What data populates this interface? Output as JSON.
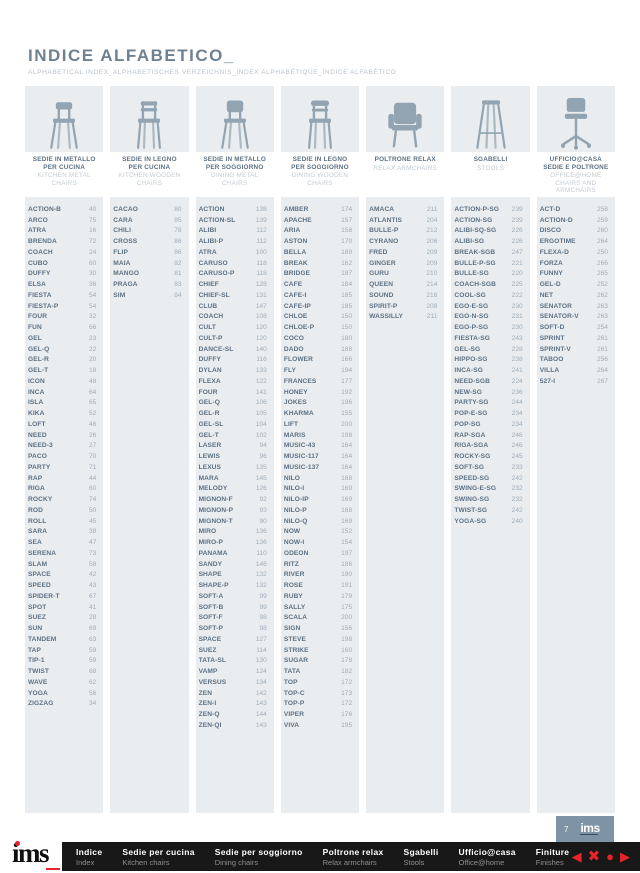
{
  "header": {
    "title": "INDICE ALFABETICO_",
    "subtitle": "ALPHABETICAL INDEX_ALPHABETISCHES VERZEICHNIS_INDEX ALPHABÉTIQUE_ÍNDICE ALFABÉTICO"
  },
  "brand": {
    "logo": "ims",
    "accent_red": "#e5242b",
    "panel_gray": "#e9edf0",
    "badge_blue": "#7e94a4"
  },
  "badge": {
    "page_number": "7",
    "logo": "ims"
  },
  "columns": [
    {
      "icon": "kitchen-metal-chair",
      "title_it": "SEDIE IN METALLO\nPER CUCINA",
      "title_en": "KITCHEN METAL\nCHAIRS",
      "items": [
        [
          "ACTION-B",
          40
        ],
        [
          "ARCO",
          75
        ],
        [
          "ATRA",
          16
        ],
        [
          "BRENDA",
          72
        ],
        [
          "COACH",
          24
        ],
        [
          "CUBO",
          60
        ],
        [
          "DUFFY",
          30
        ],
        [
          "ELSA",
          36
        ],
        [
          "FIESTA",
          54
        ],
        [
          "FIESTA-P",
          54
        ],
        [
          "FOUR",
          32
        ],
        [
          "FUN",
          66
        ],
        [
          "GEL",
          23
        ],
        [
          "GEL-Q",
          22
        ],
        [
          "GEL-R",
          20
        ],
        [
          "GEL-T",
          18
        ],
        [
          "ICON",
          48
        ],
        [
          "INCA",
          64
        ],
        [
          "ISLA",
          65
        ],
        [
          "KIKA",
          52
        ],
        [
          "LOFT",
          46
        ],
        [
          "NEED",
          26
        ],
        [
          "NEED-3",
          27
        ],
        [
          "PACO",
          70
        ],
        [
          "PARTY",
          71
        ],
        [
          "RAP",
          44
        ],
        [
          "RIGA",
          60
        ],
        [
          "ROCKY",
          74
        ],
        [
          "ROD",
          50
        ],
        [
          "ROLL",
          45
        ],
        [
          "SARA",
          38
        ],
        [
          "SEA",
          47
        ],
        [
          "SERENA",
          73
        ],
        [
          "SLAM",
          58
        ],
        [
          "SPACE",
          42
        ],
        [
          "SPEED",
          43
        ],
        [
          "SPIDER-T",
          67
        ],
        [
          "SPOT",
          41
        ],
        [
          "SUEZ",
          28
        ],
        [
          "SUN",
          69
        ],
        [
          "TANDEM",
          63
        ],
        [
          "TAP",
          59
        ],
        [
          "TIP-1",
          59
        ],
        [
          "TWIST",
          68
        ],
        [
          "WAVE",
          62
        ],
        [
          "YOGA",
          56
        ],
        [
          "ZIGZAG",
          34
        ]
      ]
    },
    {
      "icon": "kitchen-wooden-chair",
      "title_it": "SEDIE IN LEGNO\nPER CUCINA",
      "title_en": "KITCHEN WOODEN\nCHAIRS",
      "items": [
        [
          "CACAO",
          80
        ],
        [
          "CARA",
          85
        ],
        [
          "CHILI",
          78
        ],
        [
          "CROSS",
          86
        ],
        [
          "FLIP",
          86
        ],
        [
          "MAIA",
          82
        ],
        [
          "MANGO",
          81
        ],
        [
          "PRAGA",
          83
        ],
        [
          "SIM",
          84
        ]
      ]
    },
    {
      "icon": "dining-metal-chair",
      "title_it": "SEDIE IN METALLO\nPER SOGGIORNO",
      "title_en": "DINING METAL\nCHAIRS",
      "items": [
        [
          "ACTION",
          138
        ],
        [
          "ACTION-SL",
          139
        ],
        [
          "ALIBI",
          112
        ],
        [
          "ALIBI-P",
          112
        ],
        [
          "ATRA",
          100
        ],
        [
          "CARUSO",
          118
        ],
        [
          "CARUSO-P",
          118
        ],
        [
          "CHIEF",
          128
        ],
        [
          "CHIEF-SL",
          131
        ],
        [
          "CLUB",
          147
        ],
        [
          "COACH",
          108
        ],
        [
          "CULT",
          120
        ],
        [
          "CULT-P",
          120
        ],
        [
          "DANCE-SL",
          140
        ],
        [
          "DUFFY",
          116
        ],
        [
          "DYLAN",
          133
        ],
        [
          "FLEXA",
          122
        ],
        [
          "FOUR",
          141
        ],
        [
          "GEL-Q",
          106
        ],
        [
          "GEL-R",
          105
        ],
        [
          "GEL-SL",
          104
        ],
        [
          "GEL-T",
          102
        ],
        [
          "LASER",
          94
        ],
        [
          "LEWIS",
          96
        ],
        [
          "LEXUS",
          135
        ],
        [
          "MARA",
          145
        ],
        [
          "MELODY",
          126
        ],
        [
          "MIGNON-F",
          92
        ],
        [
          "MIGNON-P",
          93
        ],
        [
          "MIGNON-T",
          90
        ],
        [
          "MIRO",
          136
        ],
        [
          "MIRO-P",
          136
        ],
        [
          "PANAMA",
          110
        ],
        [
          "SANDY",
          146
        ],
        [
          "SHAPE",
          132
        ],
        [
          "SHAPE-P",
          132
        ],
        [
          "SOFT-A",
          99
        ],
        [
          "SOFT-B",
          99
        ],
        [
          "SOFT-F",
          98
        ],
        [
          "SOFT-P",
          98
        ],
        [
          "SPACE",
          127
        ],
        [
          "SUEZ",
          114
        ],
        [
          "TATA-SL",
          130
        ],
        [
          "VAMP",
          124
        ],
        [
          "VERSUS",
          134
        ],
        [
          "ZEN",
          142
        ],
        [
          "ZEN-I",
          143
        ],
        [
          "ZEN-Q",
          144
        ],
        [
          "ZEN-QI",
          143
        ]
      ]
    },
    {
      "icon": "dining-wooden-chair",
      "title_it": "SEDIE IN LEGNO\nPER SOGGIORNO",
      "title_en": "DINING WOODEN\nCHAIRS",
      "items": [
        [
          "AMBER",
          174
        ],
        [
          "APACHE",
          157
        ],
        [
          "ARIA",
          158
        ],
        [
          "ASTON",
          170
        ],
        [
          "BELLA",
          189
        ],
        [
          "BREAK",
          162
        ],
        [
          "BRIDGE",
          187
        ],
        [
          "CAFE",
          184
        ],
        [
          "CAFE-I",
          185
        ],
        [
          "CAFE-IP",
          185
        ],
        [
          "CHLOE",
          150
        ],
        [
          "CHLOE-P",
          150
        ],
        [
          "COCO",
          180
        ],
        [
          "DADO",
          188
        ],
        [
          "FLOWER",
          166
        ],
        [
          "FLY",
          194
        ],
        [
          "FRANCES",
          177
        ],
        [
          "HONEY",
          192
        ],
        [
          "JOKES",
          196
        ],
        [
          "KHARMA",
          155
        ],
        [
          "LIFT",
          200
        ],
        [
          "MARIS",
          198
        ],
        [
          "MUSIC-43",
          164
        ],
        [
          "MUSIC-117",
          164
        ],
        [
          "MUSIC-137",
          164
        ],
        [
          "NILO",
          168
        ],
        [
          "NILO-I",
          169
        ],
        [
          "NILO-IP",
          169
        ],
        [
          "NILO-P",
          168
        ],
        [
          "NILO-Q",
          169
        ],
        [
          "NOW",
          152
        ],
        [
          "NOW-I",
          154
        ],
        [
          "ODEON",
          197
        ],
        [
          "RITZ",
          186
        ],
        [
          "RIVER",
          190
        ],
        [
          "ROSE",
          191
        ],
        [
          "RUBY",
          179
        ],
        [
          "SALLY",
          175
        ],
        [
          "SCALA",
          200
        ],
        [
          "SIGN",
          156
        ],
        [
          "STEVE",
          198
        ],
        [
          "STRIKE",
          160
        ],
        [
          "SUGAR",
          178
        ],
        [
          "TATA",
          182
        ],
        [
          "TOP",
          172
        ],
        [
          "TOP-C",
          173
        ],
        [
          "TOP-P",
          172
        ],
        [
          "VIPER",
          176
        ],
        [
          "VIVA",
          195
        ]
      ]
    },
    {
      "icon": "relax-armchair",
      "title_it": "POLTRONE RELAX",
      "title_en": "RELAX ARMCHAIRS",
      "items": [
        [
          "AMACA",
          211
        ],
        [
          "ATLANTIS",
          204
        ],
        [
          "BULLE-P",
          212
        ],
        [
          "CYRANO",
          206
        ],
        [
          "FRED",
          209
        ],
        [
          "GINGER",
          209
        ],
        [
          "GURU",
          210
        ],
        [
          "QUEEN",
          214
        ],
        [
          "SOUND",
          216
        ],
        [
          "SPIRIT-P",
          208
        ],
        [
          "WASSILLY",
          211
        ]
      ]
    },
    {
      "icon": "stool",
      "title_it": "SGABELLI",
      "title_en": "STOOLS",
      "items": [
        [
          "ACTION-P-SG",
          239
        ],
        [
          "ACTION-SG",
          239
        ],
        [
          "ALIBI-SQ-SG",
          226
        ],
        [
          "ALIBI-SG",
          226
        ],
        [
          "BREAK-SGB",
          247
        ],
        [
          "BULLE-P-SG",
          221
        ],
        [
          "BULLE-SG",
          220
        ],
        [
          "COACH-SGB",
          225
        ],
        [
          "COOL-SG",
          222
        ],
        [
          "EGO-E-SG",
          230
        ],
        [
          "EGO-N-SG",
          231
        ],
        [
          "EGO-P-SG",
          230
        ],
        [
          "FIESTA-SG",
          243
        ],
        [
          "GEL-SG",
          228
        ],
        [
          "HIPPO-SG",
          238
        ],
        [
          "INCA-SG",
          241
        ],
        [
          "NEED-SGB",
          224
        ],
        [
          "NEW-SG",
          236
        ],
        [
          "PARTY-SG",
          244
        ],
        [
          "POP-E-SG",
          234
        ],
        [
          "POP-SG",
          234
        ],
        [
          "RAP-SGA",
          246
        ],
        [
          "RIGA-SGA",
          246
        ],
        [
          "ROCKY-SG",
          245
        ],
        [
          "SOFT-SG",
          233
        ],
        [
          "SPEED-SG",
          242
        ],
        [
          "SWING-E-SG",
          232
        ],
        [
          "SWING-SG",
          232
        ],
        [
          "TWIST-SG",
          242
        ],
        [
          "YOGA-SG",
          240
        ]
      ]
    },
    {
      "icon": "office-chair",
      "title_it": "UFFICIO@CASA\nSEDIE E POLTRONE",
      "title_en": "OFFICE@HOME\nCHAIRS AND ARMCHAIRS",
      "items": [
        [
          "ACT-D",
          258
        ],
        [
          "ACTION-D",
          259
        ],
        [
          "DISCO",
          260
        ],
        [
          "ERGOTIME",
          264
        ],
        [
          "FLEXA-D",
          250
        ],
        [
          "FORZA",
          266
        ],
        [
          "FUNNY",
          265
        ],
        [
          "GEL-D",
          252
        ],
        [
          "NET",
          262
        ],
        [
          "SENATOR",
          263
        ],
        [
          "SENATOR-V",
          263
        ],
        [
          "SOFT-D",
          254
        ],
        [
          "SPRINT",
          261
        ],
        [
          "SPRINT-V",
          261
        ],
        [
          "TABOO",
          256
        ],
        [
          "VILLA",
          264
        ],
        [
          "527-I",
          267
        ]
      ]
    }
  ],
  "footer": {
    "menu": [
      {
        "it": "Indice",
        "en": "Index"
      },
      {
        "it": "Sedie per cucina",
        "en": "Kitchen chairs"
      },
      {
        "it": "Sedie per soggiorno",
        "en": "Dining chairs"
      },
      {
        "it": "Poltrone relax",
        "en": "Relax armchairs"
      },
      {
        "it": "Sgabelli",
        "en": "Stools"
      },
      {
        "it": "Ufficio@casa",
        "en": "Office@home"
      },
      {
        "it": "Finiture",
        "en": "Finishes"
      }
    ],
    "nav_icons": [
      {
        "name": "nav-previous-icon",
        "glyph": "◀"
      },
      {
        "name": "nav-close-icon",
        "glyph": "✖"
      },
      {
        "name": "nav-home-dot-icon",
        "glyph": "●"
      },
      {
        "name": "nav-next-icon",
        "glyph": "▶"
      }
    ]
  }
}
